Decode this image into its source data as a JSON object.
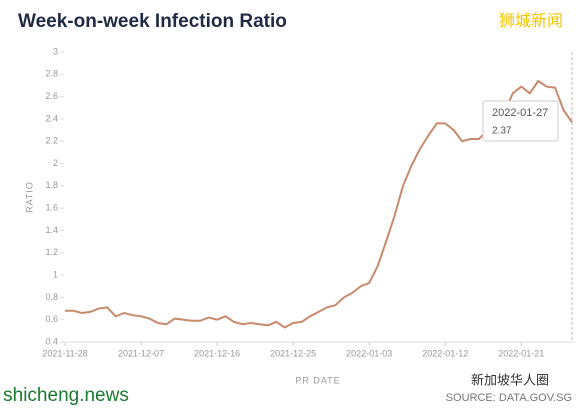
{
  "chart_data": {
    "type": "line",
    "title": "Week-on-week Infection Ratio",
    "xlabel": "PR DATE",
    "ylabel": "RATIO",
    "source": "SOURCE: DATA.GOV.SG",
    "watermarks": [
      "狮城新闻",
      "shicheng.news",
      "新加坡华人圈"
    ],
    "x": [
      "2021-11-28",
      "2021-11-29",
      "2021-11-30",
      "2021-12-01",
      "2021-12-02",
      "2021-12-03",
      "2021-12-04",
      "2021-12-05",
      "2021-12-06",
      "2021-12-07",
      "2021-12-08",
      "2021-12-09",
      "2021-12-10",
      "2021-12-11",
      "2021-12-12",
      "2021-12-13",
      "2021-12-14",
      "2021-12-15",
      "2021-12-16",
      "2021-12-17",
      "2021-12-18",
      "2021-12-19",
      "2021-12-20",
      "2021-12-21",
      "2021-12-22",
      "2021-12-23",
      "2021-12-24",
      "2021-12-25",
      "2021-12-26",
      "2021-12-27",
      "2021-12-28",
      "2021-12-29",
      "2021-12-30",
      "2021-12-31",
      "2022-01-01",
      "2022-01-02",
      "2022-01-03",
      "2022-01-04",
      "2022-01-05",
      "2022-01-06",
      "2022-01-07",
      "2022-01-08",
      "2022-01-09",
      "2022-01-10",
      "2022-01-11",
      "2022-01-12",
      "2022-01-13",
      "2022-01-14",
      "2022-01-15",
      "2022-01-16",
      "2022-01-17",
      "2022-01-18",
      "2022-01-19",
      "2022-01-20",
      "2022-01-21",
      "2022-01-22",
      "2022-01-23",
      "2022-01-24",
      "2022-01-25",
      "2022-01-26",
      "2022-01-27"
    ],
    "xticks": [
      "2021-11-28",
      "2021-12-07",
      "2021-12-16",
      "2021-12-25",
      "2022-01-03",
      "2022-01-12",
      "2022-01-21"
    ],
    "series": [
      {
        "name": "Ratio",
        "color": "#c98a6c",
        "values": [
          0.68,
          0.68,
          0.66,
          0.67,
          0.7,
          0.71,
          0.63,
          0.66,
          0.64,
          0.63,
          0.61,
          0.57,
          0.56,
          0.61,
          0.6,
          0.59,
          0.59,
          0.62,
          0.6,
          0.63,
          0.58,
          0.56,
          0.57,
          0.56,
          0.55,
          0.58,
          0.53,
          0.57,
          0.58,
          0.63,
          0.67,
          0.71,
          0.73,
          0.8,
          0.84,
          0.9,
          0.93,
          1.08,
          1.3,
          1.53,
          1.8,
          1.98,
          2.13,
          2.25,
          2.36,
          2.36,
          2.3,
          2.2,
          2.22,
          2.22,
          2.3,
          2.4,
          2.46,
          2.63,
          2.69,
          2.63,
          2.74,
          2.69,
          2.68,
          2.48,
          2.37
        ]
      }
    ],
    "ylim": [
      0.4,
      3
    ],
    "yticks": [
      0.4,
      0.6,
      0.8,
      1,
      1.2,
      1.4,
      1.6,
      1.8,
      2,
      2.2,
      2.4,
      2.6,
      2.8,
      3
    ]
  }
}
